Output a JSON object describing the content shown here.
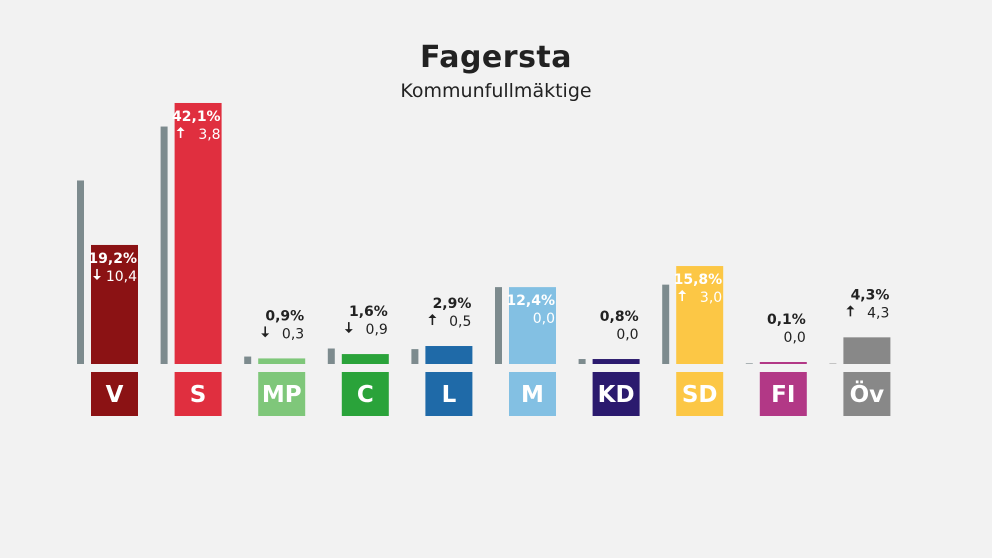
{
  "header": {
    "title": "Fagersta",
    "subtitle": "Kommunfullmäktige"
  },
  "chart_data": {
    "type": "bar",
    "title": "Fagersta",
    "subtitle": "Kommunfullmäktige",
    "unit": "%",
    "ylim": [
      0,
      45
    ],
    "categories": [
      "V",
      "S",
      "MP",
      "C",
      "L",
      "M",
      "KD",
      "SD",
      "FI",
      "Öv"
    ],
    "series": [
      {
        "values": [
          29.6,
          38.3,
          1.2,
          2.5,
          2.4,
          12.4,
          0.8,
          12.8,
          0.1,
          0.0
        ]
      },
      {
        "values": [
          19.2,
          42.1,
          0.9,
          1.6,
          2.9,
          12.4,
          0.8,
          15.8,
          0.1,
          4.3
        ]
      }
    ],
    "labels": [
      "19,2%",
      "42,1%",
      "0,9%",
      "1,6%",
      "2,9%",
      "12,4%",
      "0,8%",
      "15,8%",
      "0,1%",
      "4,3%"
    ],
    "changes": [
      "10,4",
      "3,8",
      "0,3",
      "0,9",
      "0,5",
      "0,0",
      "0,0",
      "3,0",
      "0,0",
      "4,3"
    ],
    "change_direction": [
      "down",
      "up",
      "down",
      "down",
      "up",
      "none",
      "none",
      "up",
      "none",
      "up"
    ],
    "colors": [
      "#8b1214",
      "#e02f3f",
      "#7fc77a",
      "#2aa33a",
      "#1f6aa8",
      "#83c0e3",
      "#2b1a6e",
      "#fcc745",
      "#b23886",
      "#888888"
    ],
    "previous_color": "#7d8b8e"
  }
}
